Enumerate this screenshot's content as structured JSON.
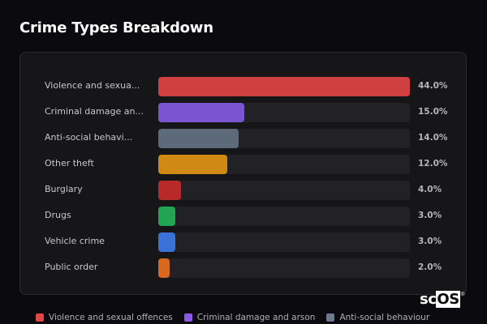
{
  "header": {
    "title": "Crime Types Breakdown"
  },
  "logo": {
    "prefix": "sc",
    "highlight": "OS",
    "mark": "®"
  },
  "chart_data": {
    "type": "bar",
    "orientation": "horizontal",
    "title": "Crime Types Breakdown",
    "categories": [
      "Violence and sexual offences",
      "Criminal damage and arson",
      "Anti-social behaviour",
      "Other theft",
      "Burglary",
      "Drugs",
      "Vehicle crime",
      "Public order"
    ],
    "display_labels": [
      "Violence and sexua...",
      "Criminal damage an...",
      "Anti-social behavi...",
      "Other theft",
      "Burglary",
      "Drugs",
      "Vehicle crime",
      "Public order"
    ],
    "values": [
      44.0,
      15.0,
      14.0,
      12.0,
      4.0,
      3.0,
      3.0,
      2.0
    ],
    "value_labels": [
      "44.0%",
      "15.0%",
      "14.0%",
      "12.0%",
      "4.0%",
      "3.0%",
      "3.0%",
      "2.0%"
    ],
    "colors": [
      "#d04040",
      "#7b55d0",
      "#5d6a7a",
      "#d08a14",
      "#b82a2a",
      "#22a552",
      "#3a72d8",
      "#d8681e"
    ],
    "xlim": [
      0,
      44
    ],
    "legend": {
      "position": "bottom",
      "entries": [
        "Violence and sexual offences",
        "Criminal damage and arson",
        "Anti-social behaviour"
      ]
    }
  },
  "legend_colors": [
    "#e04848",
    "#8a5ae6",
    "#6d7a8c"
  ]
}
